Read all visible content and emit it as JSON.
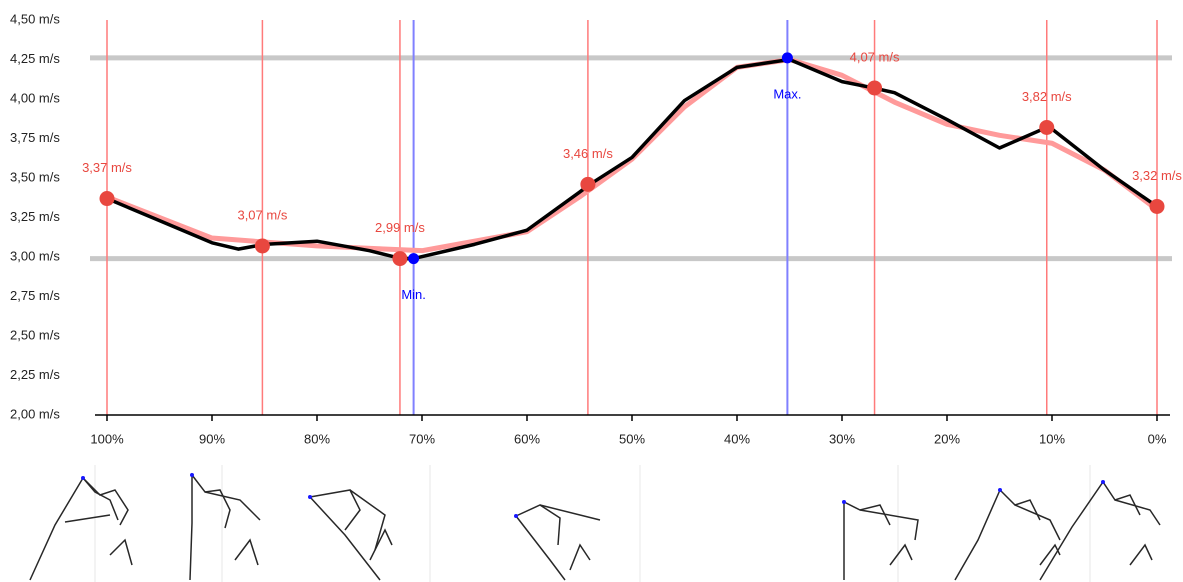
{
  "chart_data": {
    "type": "line",
    "xlim": [
      100,
      0
    ],
    "ylim": [
      2,
      4.5
    ],
    "xticks": [
      {
        "value": 100,
        "label": "100%"
      },
      {
        "value": 90,
        "label": "90%"
      },
      {
        "value": 80,
        "label": "80%"
      },
      {
        "value": 70,
        "label": "70%"
      },
      {
        "value": 60,
        "label": "60%"
      },
      {
        "value": 50,
        "label": "50%"
      },
      {
        "value": 40,
        "label": "40%"
      },
      {
        "value": 30,
        "label": "30%"
      },
      {
        "value": 20,
        "label": "20%"
      },
      {
        "value": 10,
        "label": "10%"
      },
      {
        "value": 0,
        "label": "0%"
      }
    ],
    "yticks": [
      {
        "value": 2,
        "label": "2,00 m/s"
      },
      {
        "value": 2.25,
        "label": "2,25 m/s"
      },
      {
        "value": 2.5,
        "label": "2,50 m/s"
      },
      {
        "value": 2.75,
        "label": "2,75 m/s"
      },
      {
        "value": 3,
        "label": "3,00 m/s"
      },
      {
        "value": 3.25,
        "label": "3,25 m/s"
      },
      {
        "value": 3.5,
        "label": "3,50 m/s"
      },
      {
        "value": 3.75,
        "label": "3,75 m/s"
      },
      {
        "value": 4,
        "label": "4,00 m/s"
      },
      {
        "value": 4.25,
        "label": "4,25 m/s"
      },
      {
        "value": 4.5,
        "label": "4,50 m/s"
      }
    ],
    "series": [
      {
        "color": "#ff9a9a",
        "x": [
          100,
          90,
          80,
          70,
          60,
          55,
          50,
          45,
          40,
          35,
          30,
          25,
          20,
          15,
          10,
          5,
          0
        ],
        "values": [
          3.38,
          3.12,
          3.07,
          3.04,
          3.16,
          3.38,
          3.62,
          3.95,
          4.2,
          4.25,
          4.15,
          3.98,
          3.84,
          3.77,
          3.72,
          3.55,
          3.3
        ]
      },
      {
        "color": "#000000",
        "x": [
          100,
          95,
          90,
          87.5,
          85,
          80,
          75,
          72,
          70.8,
          65,
          60,
          55,
          54,
          50,
          45,
          40,
          35,
          30,
          27,
          25,
          20,
          15,
          10.5,
          10,
          5,
          0
        ],
        "values": [
          3.37,
          3.23,
          3.09,
          3.05,
          3.08,
          3.1,
          3.04,
          2.99,
          2.99,
          3.08,
          3.17,
          3.41,
          3.46,
          3.63,
          3.99,
          4.2,
          4.25,
          4.11,
          4.07,
          4.04,
          3.87,
          3.69,
          3.82,
          3.81,
          3.55,
          3.32
        ]
      }
    ],
    "markers": {
      "color": "#e8473f",
      "x": [
        100,
        85.2,
        72.1,
        54.2,
        26.9,
        10.5,
        0
      ],
      "values": [
        3.37,
        3.07,
        2.99,
        3.46,
        4.07,
        3.82,
        3.32
      ],
      "value_labels": [
        "3,37 m/s",
        "3,07 m/s",
        "2,99 m/s",
        "3,46 m/s",
        "4,07 m/s",
        "3,82 m/s",
        "3,32 m/s"
      ]
    },
    "extremes": {
      "color": "#0000ff",
      "x": [
        70.8,
        35.2
      ],
      "values": [
        2.99,
        4.26
      ],
      "labels": [
        "Min.",
        "Max."
      ]
    }
  }
}
